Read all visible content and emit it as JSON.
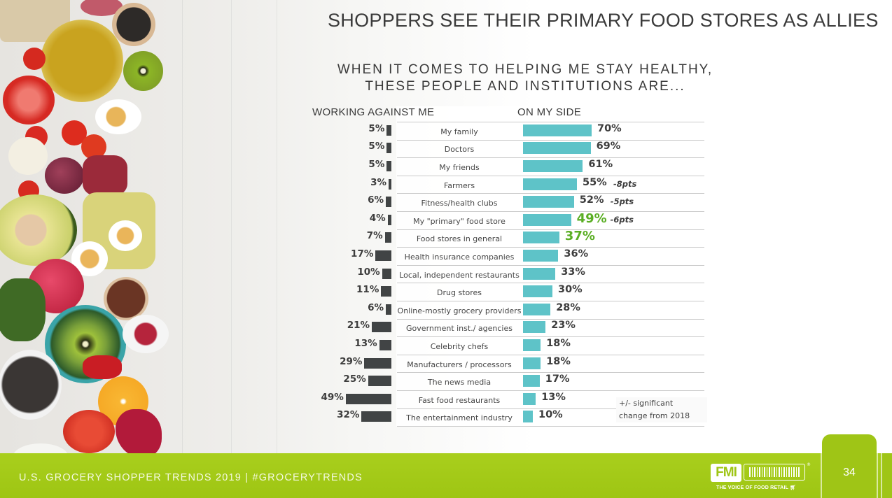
{
  "slide": {
    "title": "SHOPPERS SEE THEIR PRIMARY FOOD STORES AS ALLIES",
    "subtitle_line1": "WHEN IT COMES TO HELPING ME STAY HEALTHY,",
    "subtitle_line2": "THESE PEOPLE AND INSTITUTIONS ARE...",
    "note_line1": "+/- significant",
    "note_line2": "change from 2018"
  },
  "footer": {
    "text": "U.S. GROCERY SHOPPER TRENDS 2019  |  #GROCERYTRENDS",
    "page_number": "34",
    "logo_text": "FMI",
    "logo_tagline": "THE VOICE OF FOOD RETAIL",
    "logo_icon": "shopping-cart-icon"
  },
  "colors": {
    "on_my_side_bar": "#5ec3c8",
    "working_against_bar": "#414445",
    "highlight_text": "#5aae24",
    "footer_green": "#9fc516"
  },
  "chart_data": {
    "type": "bar",
    "title": "WHEN IT COMES TO HELPING ME STAY HEALTHY, THESE PEOPLE AND INSTITUTIONS ARE...",
    "orientation": "horizontal-diverging",
    "unit": "%",
    "xlim": [
      0,
      100
    ],
    "grid": false,
    "categories": [
      "My family",
      "Doctors",
      "My friends",
      "Farmers",
      "Fitness/health clubs",
      "My \"primary\" food store",
      "Food stores in general",
      "Health insurance companies",
      "Local, independent restaurants",
      "Drug stores",
      "Online-mostly grocery providers",
      "Government inst./ agencies",
      "Celebrity chefs",
      "Manufacturers / processors",
      "The news media",
      "Fast food restaurants",
      "The entertainment industry"
    ],
    "series": [
      {
        "name": "WORKING AGAINST ME",
        "values": [
          5,
          5,
          5,
          3,
          6,
          4,
          7,
          17,
          10,
          11,
          6,
          21,
          13,
          29,
          25,
          49,
          32
        ]
      },
      {
        "name": "ON MY SIDE",
        "values": [
          70,
          69,
          61,
          55,
          52,
          49,
          37,
          36,
          33,
          30,
          28,
          23,
          18,
          18,
          17,
          13,
          10
        ]
      }
    ],
    "changes_from_2018": [
      "",
      "",
      "",
      "-8pts",
      "-5pts",
      "-6pts",
      "",
      "",
      "",
      "",
      "",
      "",
      "",
      "",
      "",
      "",
      ""
    ],
    "highlighted": [
      false,
      false,
      false,
      false,
      false,
      true,
      true,
      false,
      false,
      false,
      false,
      false,
      false,
      false,
      false,
      false,
      false
    ],
    "legend": [
      "WORKING AGAINST ME",
      "ON MY SIDE"
    ]
  }
}
